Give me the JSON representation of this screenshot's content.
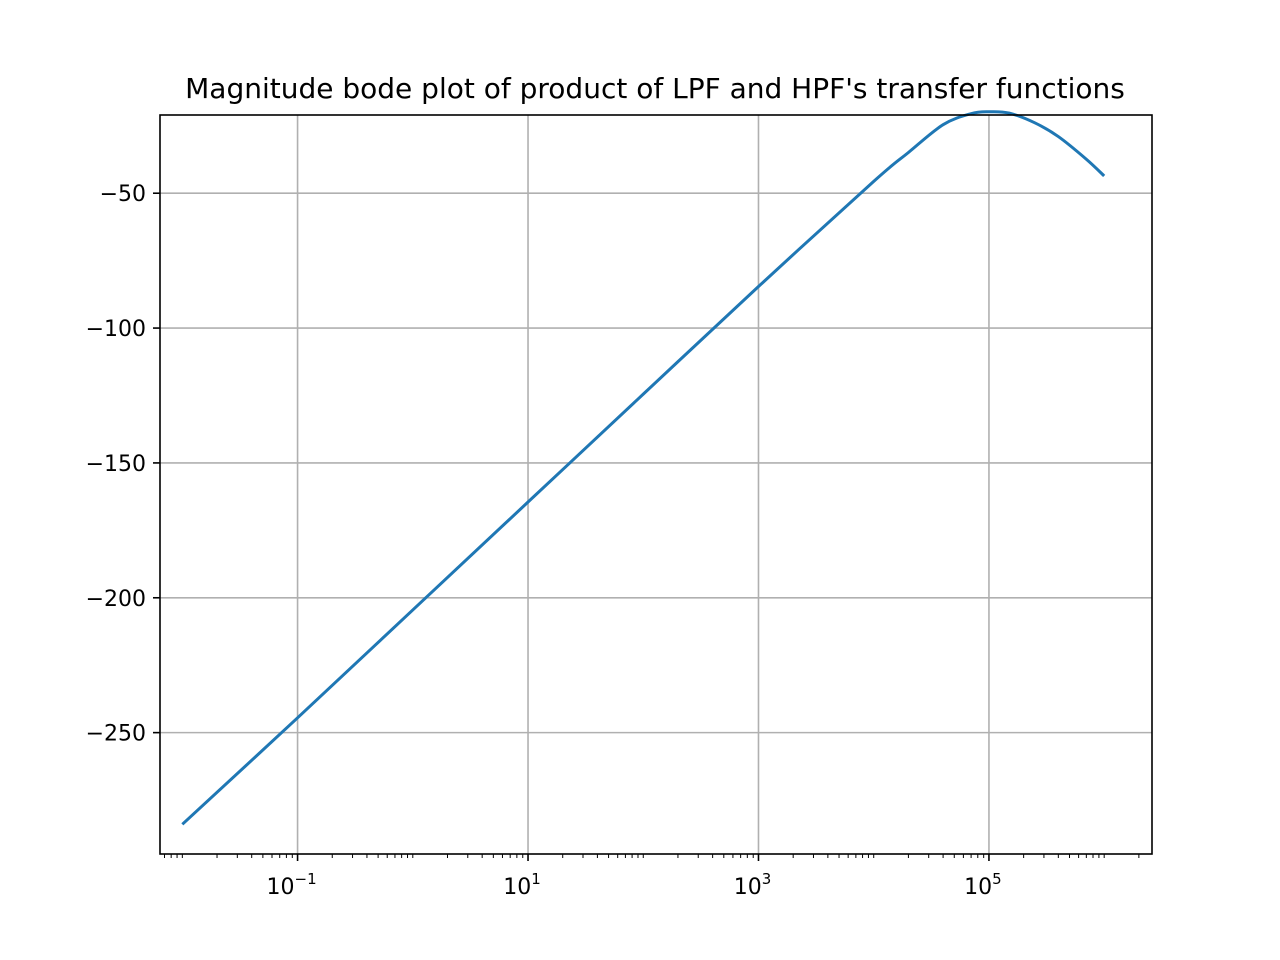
{
  "chart_data": {
    "type": "line",
    "title": "Magnitude bode plot of product of LPF and HPF's transfer functions",
    "xlabel": "",
    "ylabel": "",
    "xscale": "log",
    "xlim": [
      0.0064,
      2600000
    ],
    "ylim": [
      -295,
      -21
    ],
    "grid": true,
    "x_ticks": [
      {
        "value": 0.1,
        "base": "10",
        "exp": "−1"
      },
      {
        "value": 10,
        "base": "10",
        "exp": "1"
      },
      {
        "value": 1000,
        "base": "10",
        "exp": "3"
      },
      {
        "value": 100000,
        "base": "10",
        "exp": "5"
      }
    ],
    "y_ticks": [
      {
        "value": -50,
        "label": "−50"
      },
      {
        "value": -100,
        "label": "−100"
      },
      {
        "value": -150,
        "label": "−150"
      },
      {
        "value": -200,
        "label": "−200"
      },
      {
        "value": -250,
        "label": "−250"
      }
    ],
    "series": [
      {
        "color": "#1f77b4",
        "x": [
          0.01,
          0.1,
          1,
          10,
          100,
          1000,
          10000,
          20000,
          40000,
          70000,
          100000,
          150000,
          250000,
          400000,
          700000,
          1000000
        ],
        "y": [
          -284,
          -244.5,
          -204.5,
          -164.5,
          -124.5,
          -84.6,
          -45.6,
          -34.9,
          -24.6,
          -20.5,
          -19.8,
          -20.3,
          -23.9,
          -29.0,
          -37.4,
          -43.6
        ]
      }
    ]
  }
}
